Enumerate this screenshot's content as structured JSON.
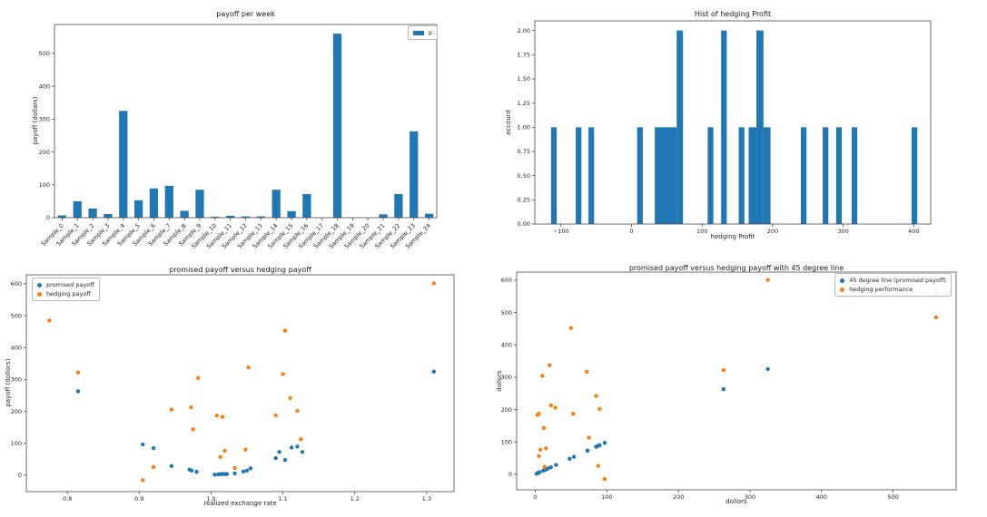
{
  "colors": {
    "blue": "#1f77b4",
    "orange": "#ff7f0e",
    "background": "#ffffff",
    "text": "#262626",
    "spine": "#4a4a4a"
  },
  "chart_data": [
    {
      "id": "payoff-per-week",
      "type": "bar",
      "title": "payoff per week",
      "xlabel": "",
      "ylabel": "payoff (dollars)",
      "color": "#1f77b4",
      "legend": {
        "position": "top-right",
        "items": [
          {
            "label": "p",
            "color": "#1f77b4"
          }
        ]
      },
      "categories": [
        "Sample_0",
        "Sample_1",
        "Sample_2",
        "Sample_3",
        "Sample_4",
        "Sample_5",
        "Sample_6",
        "Sample_7",
        "Sample_8",
        "Sample_9",
        "Sample_10",
        "Sample_11",
        "Sample_12",
        "Sample_13",
        "Sample_14",
        "Sample_15",
        "Sample_16",
        "Sample_17",
        "Sample_18",
        "Sample_19",
        "Sample_20",
        "Sample_21",
        "Sample_22",
        "Sample_23",
        "Sample_24"
      ],
      "values": [
        7,
        50,
        28,
        11,
        325,
        53,
        89,
        97,
        21,
        85,
        3,
        6,
        4,
        4,
        85,
        20,
        72,
        0,
        560,
        0,
        0,
        10,
        72,
        263,
        12
      ],
      "ylim": [
        0,
        588
      ],
      "yticks": {
        "values": [
          0,
          100,
          200,
          300,
          400,
          500
        ],
        "labels": [
          "0",
          "100",
          "200",
          "300",
          "400",
          "500"
        ]
      }
    },
    {
      "id": "hist-of-hedging-profit",
      "type": "histogram",
      "title": "Hist of hedging Profit",
      "xlabel": "hedging Profit",
      "ylabel": "account",
      "color": "#1f77b4",
      "bars": [
        {
          "x": -114,
          "w": 8,
          "h": 1
        },
        {
          "x": -79,
          "w": 8,
          "h": 1
        },
        {
          "x": -61,
          "w": 8,
          "h": 1
        },
        {
          "x": 8,
          "w": 8,
          "h": 1
        },
        {
          "x": 33,
          "w": 31,
          "h": 1
        },
        {
          "x": 64,
          "w": 9,
          "h": 2
        },
        {
          "x": 108,
          "w": 8,
          "h": 1
        },
        {
          "x": 127,
          "w": 8,
          "h": 2
        },
        {
          "x": 152,
          "w": 8,
          "h": 1
        },
        {
          "x": 166,
          "w": 11,
          "h": 1
        },
        {
          "x": 177,
          "w": 10,
          "h": 2
        },
        {
          "x": 187,
          "w": 10,
          "h": 1
        },
        {
          "x": 240,
          "w": 8,
          "h": 1
        },
        {
          "x": 271,
          "w": 8,
          "h": 1
        },
        {
          "x": 290,
          "w": 8,
          "h": 1
        },
        {
          "x": 312,
          "w": 8,
          "h": 1
        },
        {
          "x": 397,
          "w": 8,
          "h": 1
        }
      ],
      "xlim": [
        -137,
        424
      ],
      "ylim": [
        0,
        2.1
      ],
      "xticks": {
        "values": [
          -100,
          0,
          100,
          200,
          300,
          400
        ],
        "labels": [
          "−100",
          "0",
          "100",
          "200",
          "300",
          "400"
        ]
      },
      "yticks": {
        "values": [
          0,
          0.25,
          0.5,
          0.75,
          1.0,
          1.25,
          1.5,
          1.75,
          2.0
        ],
        "labels": [
          "0.00",
          "0.25",
          "0.50",
          "0.75",
          "1.00",
          "1.25",
          "1.50",
          "1.75",
          "2.00"
        ]
      }
    },
    {
      "id": "promised-vs-hedging",
      "type": "scatter",
      "title": "promised payoff versus hedging payoff",
      "xlabel": "realized exchange rate",
      "ylabel": "payoff (dollors)",
      "legend": {
        "position": "top-left",
        "items": [
          {
            "label": "promised payoff",
            "color": "#1f77b4"
          },
          {
            "label": "hedging payoff",
            "color": "#ff7f0e"
          }
        ]
      },
      "series": [
        {
          "name": "promised payoff",
          "color": "#1f77b4",
          "points": [
            [
              0.775,
              560
            ],
            [
              0.815,
              263
            ],
            [
              0.905,
              97
            ],
            [
              0.92,
              85
            ],
            [
              0.945,
              29
            ],
            [
              0.97,
              18
            ],
            [
              0.973,
              15
            ],
            [
              0.98,
              11
            ],
            [
              1.005,
              2
            ],
            [
              1.01,
              3
            ],
            [
              1.013,
              4
            ],
            [
              1.016,
              4
            ],
            [
              1.019,
              4
            ],
            [
              1.022,
              4
            ],
            [
              1.033,
              6
            ],
            [
              1.045,
              12
            ],
            [
              1.05,
              15
            ],
            [
              1.055,
              22
            ],
            [
              1.09,
              54
            ],
            [
              1.095,
              73
            ],
            [
              1.103,
              48
            ],
            [
              1.112,
              87
            ],
            [
              1.12,
              90
            ],
            [
              1.127,
              73
            ],
            [
              1.31,
              325
            ]
          ]
        },
        {
          "name": "hedging payoff",
          "color": "#ff7f0e",
          "points": [
            [
              0.775,
              485
            ],
            [
              0.815,
              322
            ],
            [
              0.905,
              -15
            ],
            [
              0.92,
              26
            ],
            [
              0.945,
              206
            ],
            [
              0.972,
              213
            ],
            [
              0.975,
              144
            ],
            [
              0.982,
              305
            ],
            [
              1.008,
              187
            ],
            [
              1.013,
              57
            ],
            [
              1.016,
              183
            ],
            [
              1.019,
              77
            ],
            [
              1.033,
              23
            ],
            [
              1.048,
              81
            ],
            [
              1.052,
              338
            ],
            [
              1.09,
              188
            ],
            [
              1.1,
              317
            ],
            [
              1.103,
              453
            ],
            [
              1.11,
              242
            ],
            [
              1.12,
              202
            ],
            [
              1.125,
              113
            ],
            [
              1.31,
              601
            ]
          ]
        }
      ],
      "xlim": [
        0.743,
        1.338
      ],
      "ylim": [
        -51,
        628
      ],
      "xticks": {
        "values": [
          0.8,
          0.9,
          1.0,
          1.1,
          1.2,
          1.3
        ],
        "labels": [
          "0.8",
          "0.9",
          "1.0",
          "1.1",
          "1.2",
          "1.3"
        ]
      },
      "yticks": {
        "values": [
          0,
          100,
          200,
          300,
          400,
          500,
          600
        ],
        "labels": [
          "0",
          "100",
          "200",
          "300",
          "400",
          "500",
          "600"
        ]
      }
    },
    {
      "id": "promised-vs-hedging-45-degree",
      "type": "scatter",
      "title": "promised payoff versus hedging payoff with 45 degree line",
      "xlabel": "dollors",
      "ylabel": "dollors",
      "legend": {
        "position": "top-right",
        "items": [
          {
            "label": "45 degree line (promised payoff)",
            "color": "#1f77b4"
          },
          {
            "label": "hedging performance",
            "color": "#ff7f0e"
          }
        ]
      },
      "series": [
        {
          "name": "45 degree line (promised payoff)",
          "color": "#1f77b4",
          "points": [
            [
              2,
              2
            ],
            [
              3,
              3
            ],
            [
              4,
              4
            ],
            [
              4,
              4
            ],
            [
              4,
              4
            ],
            [
              4,
              4
            ],
            [
              6,
              6
            ],
            [
              11,
              11
            ],
            [
              12,
              12
            ],
            [
              15,
              15
            ],
            [
              15,
              15
            ],
            [
              18,
              18
            ],
            [
              22,
              22
            ],
            [
              29,
              29
            ],
            [
              48,
              48
            ],
            [
              54,
              54
            ],
            [
              73,
              73
            ],
            [
              73,
              73
            ],
            [
              85,
              85
            ],
            [
              87,
              87
            ],
            [
              90,
              90
            ],
            [
              97,
              97
            ],
            [
              263,
              263
            ],
            [
              325,
              325
            ],
            [
              560,
              560
            ]
          ]
        },
        {
          "name": "hedging performance",
          "color": "#ff7f0e",
          "points": [
            [
              3,
              183
            ],
            [
              5,
              187
            ],
            [
              5,
              56
            ],
            [
              7,
              76
            ],
            [
              10,
              304
            ],
            [
              12,
              143
            ],
            [
              13,
              23
            ],
            [
              15,
              80
            ],
            [
              20,
              337
            ],
            [
              22,
              213
            ],
            [
              28,
              206
            ],
            [
              50,
              452
            ],
            [
              53,
              187
            ],
            [
              72,
              317
            ],
            [
              75,
              113
            ],
            [
              85,
              242
            ],
            [
              88,
              26
            ],
            [
              90,
              202
            ],
            [
              97,
              -15
            ],
            [
              263,
              322
            ],
            [
              325,
              601
            ],
            [
              560,
              485
            ]
          ]
        }
      ],
      "xlim": [
        -26,
        588
      ],
      "ylim": [
        -48,
        625
      ],
      "xticks": {
        "values": [
          0,
          100,
          200,
          300,
          400,
          500
        ],
        "labels": [
          "0",
          "100",
          "200",
          "300",
          "400",
          "500"
        ]
      },
      "yticks": {
        "values": [
          0,
          100,
          200,
          300,
          400,
          500,
          600
        ],
        "labels": [
          "0",
          "100",
          "200",
          "300",
          "400",
          "500",
          "600"
        ]
      }
    }
  ]
}
